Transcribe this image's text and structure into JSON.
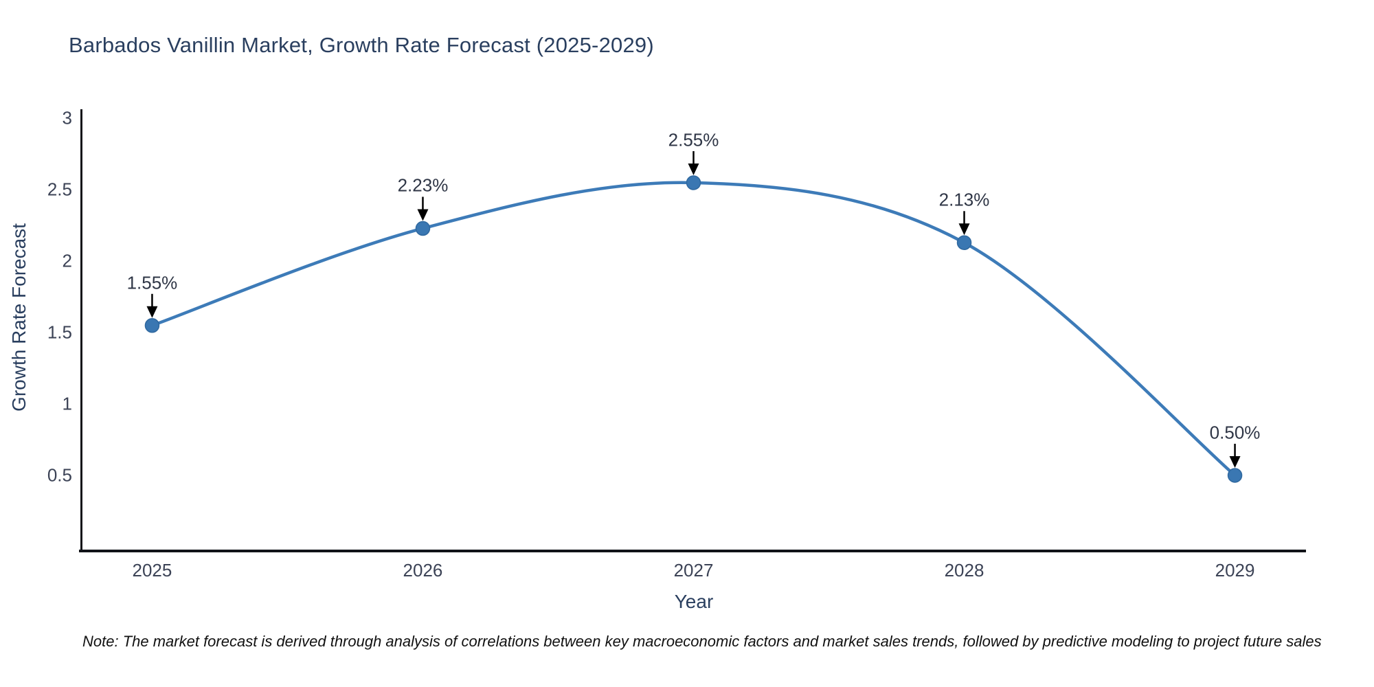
{
  "figure": {
    "title": "Barbados Vanillin Market, Growth Rate Forecast (2025-2029)",
    "note": "Note: The market forecast is derived through analysis of correlations between key macroeconomic factors and market sales trends, followed by predictive modeling to project future sales",
    "colors": {
      "line": "#3d7bb8",
      "marker_fill": "#3a77b2",
      "marker_edge": "#2f689f",
      "title_text": "#2a3f5f",
      "axis_title_text": "#2a3f5f",
      "tick_text": "#3c4356",
      "axis_line": "#111318",
      "annotation_text": "#2f3646",
      "arrow": "#000000",
      "note_text": "#111111",
      "background": "#ffffff"
    }
  },
  "chart_data": {
    "type": "line",
    "title": "Barbados Vanillin Market, Growth Rate Forecast (2025-2029)",
    "xlabel": "Year",
    "ylabel": "Growth Rate Forecast",
    "x": [
      2025,
      2026,
      2027,
      2028,
      2029
    ],
    "y": [
      1.55,
      2.23,
      2.55,
      2.13,
      0.5
    ],
    "point_labels": [
      "1.55%",
      "2.23%",
      "2.55%",
      "2.13%",
      "0.50%"
    ],
    "series_name": "Growth Rate Forecast",
    "xticks": [
      "2025",
      "2026",
      "2027",
      "2028",
      "2029"
    ],
    "xtick_values": [
      2025,
      2026,
      2027,
      2028,
      2029
    ],
    "yticks": [
      "0.5",
      "1",
      "1.5",
      "2",
      "2.5",
      "3"
    ],
    "ytick_values": [
      0.5,
      1,
      1.5,
      2,
      2.5,
      3
    ],
    "xlim": [
      2024.74,
      2029.26
    ],
    "ylim": [
      -0.02,
      3.06
    ],
    "grid": false,
    "legend": null,
    "line_shape": "spline",
    "annotations": "value labels with down arrows above each point"
  }
}
